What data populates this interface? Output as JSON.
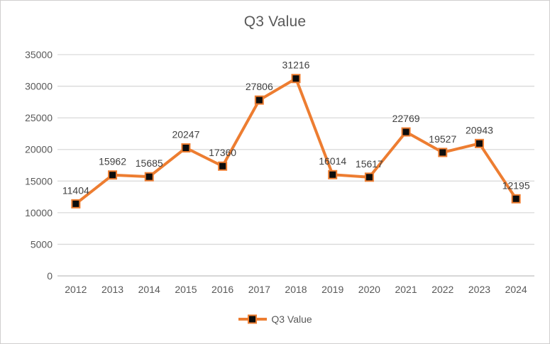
{
  "title": "Q3 Value",
  "legend": {
    "label": "Q3 Value",
    "position": "bottom"
  },
  "colors": {
    "line": "#ED7D31",
    "marker_fill": "#0d0d0d",
    "marker_stroke": "#ED7D31",
    "gridline": "#D9D9D9",
    "axis_line": "#BFBFBF",
    "title_text": "#595959",
    "tick_text": "#595959",
    "data_label_text": "#404040",
    "frame_border": "#D0CECE",
    "background": "#FFFFFF"
  },
  "chart_data": {
    "type": "line",
    "title": "Q3 Value",
    "categories": [
      "2012",
      "2013",
      "2014",
      "2015",
      "2016",
      "2017",
      "2018",
      "2019",
      "2020",
      "2021",
      "2022",
      "2023",
      "2024"
    ],
    "series": [
      {
        "name": "Q3 Value",
        "values": [
          11404,
          15962,
          15685,
          20247,
          17360,
          27806,
          31216,
          16014,
          15617,
          22769,
          19527,
          20943,
          12195
        ]
      }
    ],
    "xlabel": "",
    "ylabel": "",
    "ylim": [
      0,
      35000
    ],
    "yticks": [
      0,
      5000,
      10000,
      15000,
      20000,
      25000,
      30000,
      35000
    ],
    "grid": true,
    "data_labels": true,
    "legend_position": "bottom",
    "marker_shape": "square"
  }
}
